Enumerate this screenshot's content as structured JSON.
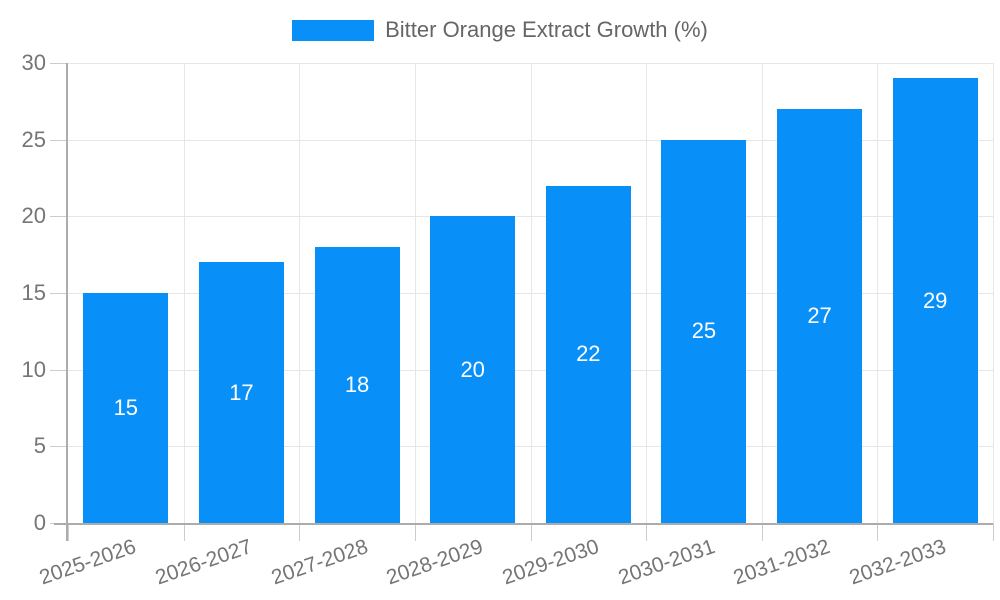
{
  "chart_data": {
    "type": "bar",
    "title": "Bitter Orange Extract Growth (%)",
    "categories": [
      "2025-2026",
      "2026-2027",
      "2027-2028",
      "2028-2029",
      "2029-2030",
      "2030-2031",
      "2031-2032",
      "2032-2033"
    ],
    "values": [
      15,
      17,
      18,
      20,
      22,
      25,
      27,
      29
    ],
    "value_labels": [
      "15",
      "17",
      "18",
      "20",
      "22",
      "25",
      "27",
      "29"
    ],
    "yticks": [
      "0",
      "5",
      "10",
      "15",
      "20",
      "25",
      "30"
    ],
    "ylim": [
      0,
      30
    ],
    "grid": true,
    "legend_position": "top",
    "x_label_rotation_deg": -19,
    "colors": {
      "bar": "#0890f8",
      "value_label": "#ffffff",
      "axis_text": "#757575",
      "legend_text": "#666666",
      "grid": "#e6e6e6",
      "tick": "#cccccc",
      "axis_line": "#acacac",
      "background": "#ffffff"
    }
  }
}
